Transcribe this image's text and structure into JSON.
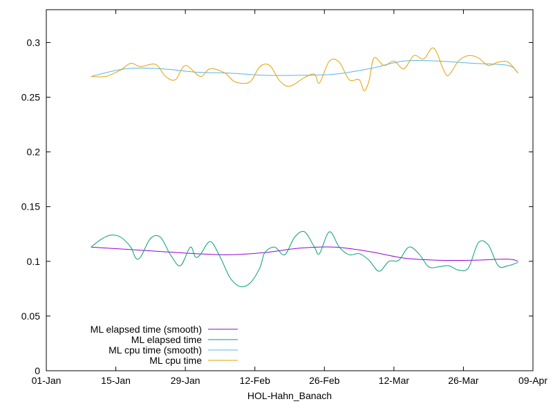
{
  "chart_data": {
    "type": "line",
    "title": "",
    "xlabel": "HOL-Hahn_Banach",
    "ylabel": "",
    "xlim": [
      "2023-01-01",
      "2023-04-09"
    ],
    "ylim": [
      0,
      0.33
    ],
    "x_ticks": [
      "01-Jan",
      "15-Jan",
      "29-Jan",
      "12-Feb",
      "26-Feb",
      "12-Mar",
      "26-Mar",
      "09-Apr"
    ],
    "x_tick_dates": [
      "2023-01-01",
      "2023-01-15",
      "2023-01-29",
      "2023-02-12",
      "2023-02-26",
      "2023-03-12",
      "2023-03-26",
      "2023-04-09"
    ],
    "y_ticks": [
      "0",
      "0.05",
      "0.1",
      "0.15",
      "0.2",
      "0.25",
      "0.3"
    ],
    "y_tick_values": [
      0,
      0.05,
      0.1,
      0.15,
      0.2,
      0.25,
      0.3
    ],
    "grid": false,
    "legend_position": "bottom-left",
    "series": [
      {
        "name": "ML elapsed time (smooth)",
        "color": "#9400d3",
        "points": [
          [
            "2023-01-10",
            0.113
          ],
          [
            "2023-01-17",
            0.111
          ],
          [
            "2023-01-24",
            0.109
          ],
          [
            "2023-01-31",
            0.107
          ],
          [
            "2023-02-07",
            0.106
          ],
          [
            "2023-02-14",
            0.108
          ],
          [
            "2023-02-21",
            0.112
          ],
          [
            "2023-02-28",
            0.113
          ],
          [
            "2023-03-07",
            0.109
          ],
          [
            "2023-03-14",
            0.103
          ],
          [
            "2023-03-21",
            0.101
          ],
          [
            "2023-03-28",
            0.101
          ],
          [
            "2023-04-04",
            0.102
          ],
          [
            "2023-04-06",
            0.1
          ]
        ]
      },
      {
        "name": "ML elapsed time",
        "color": "#009e73",
        "points": [
          [
            "2023-01-10",
            0.113
          ],
          [
            "2023-01-12",
            0.12
          ],
          [
            "2023-01-14",
            0.124
          ],
          [
            "2023-01-16",
            0.122
          ],
          [
            "2023-01-18",
            0.113
          ],
          [
            "2023-01-19",
            0.103
          ],
          [
            "2023-01-20",
            0.104
          ],
          [
            "2023-01-22",
            0.121
          ],
          [
            "2023-01-24",
            0.122
          ],
          [
            "2023-01-26",
            0.106
          ],
          [
            "2023-01-28",
            0.096
          ],
          [
            "2023-01-30",
            0.113
          ],
          [
            "2023-01-31",
            0.104
          ],
          [
            "2023-02-01",
            0.106
          ],
          [
            "2023-02-03",
            0.118
          ],
          [
            "2023-02-05",
            0.104
          ],
          [
            "2023-02-07",
            0.085
          ],
          [
            "2023-02-09",
            0.077
          ],
          [
            "2023-02-11",
            0.08
          ],
          [
            "2023-02-13",
            0.094
          ],
          [
            "2023-02-14",
            0.108
          ],
          [
            "2023-02-16",
            0.113
          ],
          [
            "2023-02-18",
            0.106
          ],
          [
            "2023-02-20",
            0.122
          ],
          [
            "2023-02-22",
            0.127
          ],
          [
            "2023-02-24",
            0.113
          ],
          [
            "2023-02-25",
            0.107
          ],
          [
            "2023-02-27",
            0.127
          ],
          [
            "2023-03-01",
            0.113
          ],
          [
            "2023-03-03",
            0.106
          ],
          [
            "2023-03-05",
            0.107
          ],
          [
            "2023-03-07",
            0.101
          ],
          [
            "2023-03-09",
            0.091
          ],
          [
            "2023-03-11",
            0.1
          ],
          [
            "2023-03-13",
            0.101
          ],
          [
            "2023-03-15",
            0.113
          ],
          [
            "2023-03-17",
            0.107
          ],
          [
            "2023-03-19",
            0.095
          ],
          [
            "2023-03-21",
            0.095
          ],
          [
            "2023-03-23",
            0.096
          ],
          [
            "2023-03-25",
            0.092
          ],
          [
            "2023-03-27",
            0.094
          ],
          [
            "2023-03-29",
            0.117
          ],
          [
            "2023-03-31",
            0.115
          ],
          [
            "2023-04-02",
            0.096
          ],
          [
            "2023-04-04",
            0.096
          ],
          [
            "2023-04-06",
            0.099
          ]
        ]
      },
      {
        "name": "ML cpu time (smooth)",
        "color": "#56b4e9",
        "points": [
          [
            "2023-01-10",
            0.269
          ],
          [
            "2023-01-17",
            0.276
          ],
          [
            "2023-01-24",
            0.276
          ],
          [
            "2023-01-31",
            0.273
          ],
          [
            "2023-02-07",
            0.272
          ],
          [
            "2023-02-14",
            0.27
          ],
          [
            "2023-02-21",
            0.27
          ],
          [
            "2023-02-28",
            0.271
          ],
          [
            "2023-03-07",
            0.276
          ],
          [
            "2023-03-14",
            0.283
          ],
          [
            "2023-03-21",
            0.283
          ],
          [
            "2023-03-28",
            0.281
          ],
          [
            "2023-04-04",
            0.279
          ],
          [
            "2023-04-06",
            0.272
          ]
        ]
      },
      {
        "name": "ML cpu time",
        "color": "#e69f00",
        "points": [
          [
            "2023-01-10",
            0.269
          ],
          [
            "2023-01-13",
            0.269
          ],
          [
            "2023-01-16",
            0.275
          ],
          [
            "2023-01-18",
            0.281
          ],
          [
            "2023-01-20",
            0.278
          ],
          [
            "2023-01-23",
            0.28
          ],
          [
            "2023-01-25",
            0.269
          ],
          [
            "2023-01-27",
            0.266
          ],
          [
            "2023-01-29",
            0.279
          ],
          [
            "2023-02-01",
            0.269
          ],
          [
            "2023-02-03",
            0.276
          ],
          [
            "2023-02-06",
            0.272
          ],
          [
            "2023-02-08",
            0.264
          ],
          [
            "2023-02-11",
            0.264
          ],
          [
            "2023-02-13",
            0.278
          ],
          [
            "2023-02-15",
            0.279
          ],
          [
            "2023-02-17",
            0.265
          ],
          [
            "2023-02-19",
            0.26
          ],
          [
            "2023-02-22",
            0.268
          ],
          [
            "2023-02-24",
            0.271
          ],
          [
            "2023-02-25",
            0.263
          ],
          [
            "2023-02-27",
            0.283
          ],
          [
            "2023-03-01",
            0.282
          ],
          [
            "2023-03-03",
            0.266
          ],
          [
            "2023-03-05",
            0.266
          ],
          [
            "2023-03-06",
            0.256
          ],
          [
            "2023-03-07",
            0.265
          ],
          [
            "2023-03-08",
            0.286
          ],
          [
            "2023-03-10",
            0.279
          ],
          [
            "2023-03-12",
            0.283
          ],
          [
            "2023-03-14",
            0.276
          ],
          [
            "2023-03-16",
            0.288
          ],
          [
            "2023-03-18",
            0.285
          ],
          [
            "2023-03-20",
            0.295
          ],
          [
            "2023-03-22",
            0.275
          ],
          [
            "2023-03-23",
            0.27
          ],
          [
            "2023-03-25",
            0.283
          ],
          [
            "2023-03-27",
            0.288
          ],
          [
            "2023-03-29",
            0.286
          ],
          [
            "2023-03-31",
            0.279
          ],
          [
            "2023-04-02",
            0.282
          ],
          [
            "2023-04-04",
            0.282
          ],
          [
            "2023-04-06",
            0.272
          ]
        ]
      }
    ]
  }
}
